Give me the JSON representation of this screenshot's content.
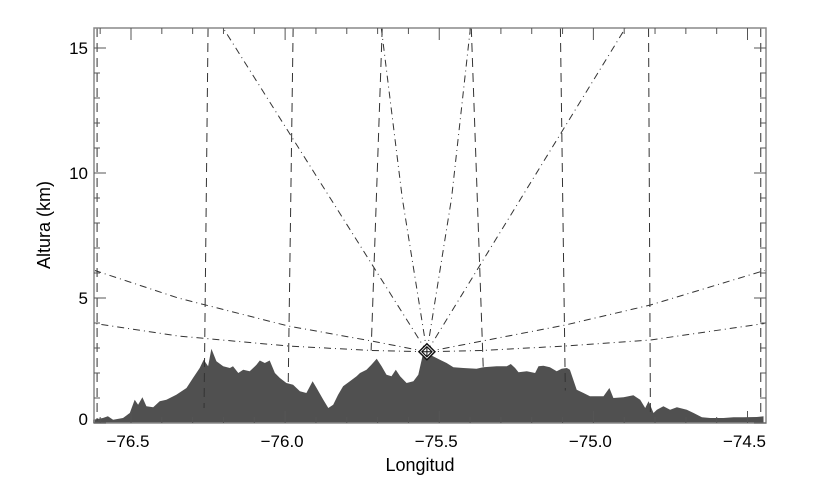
{
  "chart_data": {
    "type": "area",
    "title": "",
    "xlabel": "Longitud",
    "ylabel": "Altura (km)",
    "xlim": [
      -76.62,
      -74.44
    ],
    "ylim": [
      0,
      15.8
    ],
    "xticks": [
      -76.5,
      -76.0,
      -75.5,
      -75.0,
      -74.5
    ],
    "xtick_labels": [
      "−76.5",
      "−76.0",
      "−75.5",
      "−75.0",
      "−74.5"
    ],
    "yticks": [
      0,
      5,
      10,
      15
    ],
    "ytick_labels": [
      "0",
      "5",
      "10",
      "15"
    ],
    "x_minor_step": 0.1,
    "y_minor_step": 1,
    "grid": false,
    "terrain_color": "#505050",
    "line_color": "#333333",
    "terrain": {
      "lon": [
        -76.623,
        -76.591,
        -76.575,
        -76.558,
        -76.526,
        -76.504,
        -76.488,
        -76.477,
        -76.463,
        -76.45,
        -76.428,
        -76.407,
        -76.385,
        -76.353,
        -76.32,
        -76.299,
        -76.277,
        -76.264,
        -76.25,
        -76.239,
        -76.223,
        -76.201,
        -76.179,
        -76.169,
        -76.152,
        -76.136,
        -76.115,
        -76.093,
        -76.082,
        -76.066,
        -76.05,
        -76.033,
        -76.017,
        -75.996,
        -75.974,
        -75.952,
        -75.931,
        -75.911,
        -75.898,
        -75.876,
        -75.86,
        -75.844,
        -75.828,
        -75.812,
        -75.79,
        -75.768,
        -75.757,
        -75.736,
        -75.72,
        -75.703,
        -75.687,
        -75.671,
        -75.655,
        -75.641,
        -75.627,
        -75.606,
        -75.584,
        -75.568,
        -75.552,
        -75.53,
        -75.498,
        -75.476,
        -75.454,
        -75.422,
        -75.379,
        -75.357,
        -75.314,
        -75.281,
        -75.268,
        -75.254,
        -75.243,
        -75.216,
        -75.189,
        -75.178,
        -75.162,
        -75.141,
        -75.119,
        -75.103,
        -75.086,
        -75.076,
        -75.065,
        -75.054,
        -75.032,
        -75.011,
        -74.967,
        -74.948,
        -74.935,
        -74.902,
        -74.87,
        -74.848,
        -74.832,
        -74.821,
        -74.805,
        -74.794,
        -74.773,
        -74.751,
        -74.729,
        -74.697,
        -74.675,
        -74.648,
        -74.621,
        -74.578,
        -74.545,
        -74.513,
        -74.47,
        -74.448
      ],
      "alt": [
        0.13,
        0.2,
        0.27,
        0.13,
        0.2,
        0.4,
        0.93,
        0.73,
        1.03,
        0.67,
        0.63,
        0.87,
        0.93,
        1.13,
        1.4,
        1.8,
        2.2,
        2.53,
        2.27,
        2.97,
        2.47,
        2.27,
        2.2,
        2.27,
        2.0,
        2.13,
        2.07,
        2.33,
        2.5,
        2.4,
        2.5,
        2.0,
        1.8,
        1.6,
        1.53,
        1.27,
        1.2,
        1.67,
        1.4,
        0.93,
        0.6,
        0.73,
        1.13,
        1.47,
        1.67,
        1.87,
        2.0,
        2.13,
        2.33,
        2.57,
        2.27,
        1.93,
        1.87,
        2.13,
        1.87,
        1.6,
        1.67,
        1.93,
        2.8,
        2.73,
        2.53,
        2.4,
        2.23,
        2.2,
        2.17,
        2.23,
        2.27,
        2.27,
        2.36,
        2.2,
        2.03,
        2.07,
        2.0,
        2.27,
        2.29,
        2.23,
        2.07,
        2.17,
        2.2,
        2.13,
        1.73,
        1.33,
        1.2,
        1.07,
        1.07,
        1.4,
        1.0,
        1.03,
        1.11,
        0.93,
        0.6,
        0.87,
        0.4,
        0.53,
        0.67,
        0.53,
        0.63,
        0.53,
        0.4,
        0.23,
        0.2,
        0.2,
        0.23,
        0.23,
        0.24,
        0.27
      ]
    },
    "radar": {
      "lon": -75.54,
      "alt": 2.85
    },
    "beams": [
      {
        "lon": [
          -75.54,
          -76.201
        ],
        "alt": [
          2.85,
          15.8
        ]
      },
      {
        "lon": [
          -75.54,
          -75.62,
          -75.688
        ],
        "alt": [
          2.85,
          9.0,
          15.8
        ]
      },
      {
        "lon": [
          -75.54,
          -75.46,
          -75.399
        ],
        "alt": [
          2.85,
          9.0,
          15.8
        ]
      },
      {
        "lon": [
          -75.54,
          -74.896
        ],
        "alt": [
          2.85,
          15.8
        ]
      },
      {
        "lon": [
          -75.54,
          -75.72,
          -75.99,
          -76.347,
          -76.617
        ],
        "alt": [
          2.85,
          3.28,
          3.88,
          5.0,
          6.1
        ]
      },
      {
        "lon": [
          -75.54,
          -75.72,
          -75.99,
          -76.347,
          -76.617
        ],
        "alt": [
          2.85,
          2.9,
          3.08,
          3.48,
          3.98
        ]
      },
      {
        "lon": [
          -75.54,
          -75.36,
          -75.091,
          -74.815,
          -74.445
        ],
        "alt": [
          2.85,
          3.28,
          3.92,
          4.72,
          6.1
        ]
      },
      {
        "lon": [
          -75.54,
          -75.36,
          -75.091,
          -74.815,
          -74.445
        ],
        "alt": [
          2.85,
          2.9,
          3.08,
          3.32,
          3.98
        ]
      }
    ],
    "range_lines": [
      {
        "lon": [
          -76.61,
          -76.61
        ],
        "alt": [
          15.8,
          0.1
        ]
      },
      {
        "lon": [
          -76.25,
          -76.263
        ],
        "alt": [
          15.8,
          0.6
        ]
      },
      {
        "lon": [
          -75.974,
          -75.99
        ],
        "alt": [
          15.8,
          1.5
        ]
      },
      {
        "lon": [
          -75.685,
          -75.721
        ],
        "alt": [
          15.8,
          2.9
        ]
      },
      {
        "lon": [
          -75.396,
          -75.357
        ],
        "alt": [
          15.8,
          2.1
        ]
      },
      {
        "lon": [
          -75.107,
          -75.091
        ],
        "alt": [
          15.8,
          1.3
        ]
      },
      {
        "lon": [
          -74.821,
          -74.815
        ],
        "alt": [
          15.8,
          0.4
        ]
      },
      {
        "lon": [
          -74.457,
          -74.457
        ],
        "alt": [
          15.8,
          0.2
        ]
      }
    ]
  }
}
